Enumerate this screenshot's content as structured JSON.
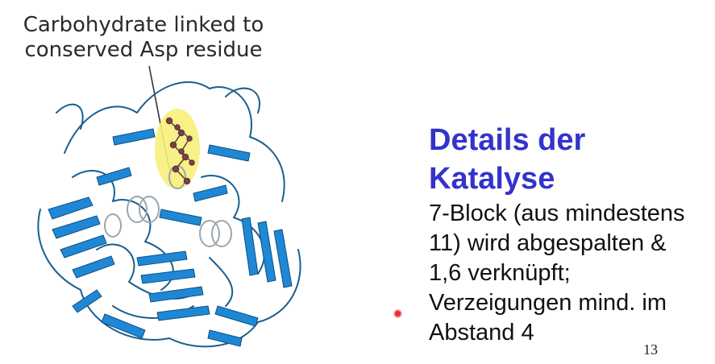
{
  "figure": {
    "caption_line1": "Carbohydrate linked to",
    "caption_line2": "conserved Asp residue",
    "protein_color": "#1e88d6",
    "highlight_color": "#f6ef7a"
  },
  "slide": {
    "title_line1": "Details der",
    "title_line2": "Katalyse",
    "body_lines": [
      "7-Block (aus mindestens",
      "11) wird abgespalten &",
      "1,6 verknüpft;",
      "Verzeigungen mind. im",
      "Abstand 4"
    ],
    "page_number": "13",
    "title_color": "#3333cc"
  }
}
